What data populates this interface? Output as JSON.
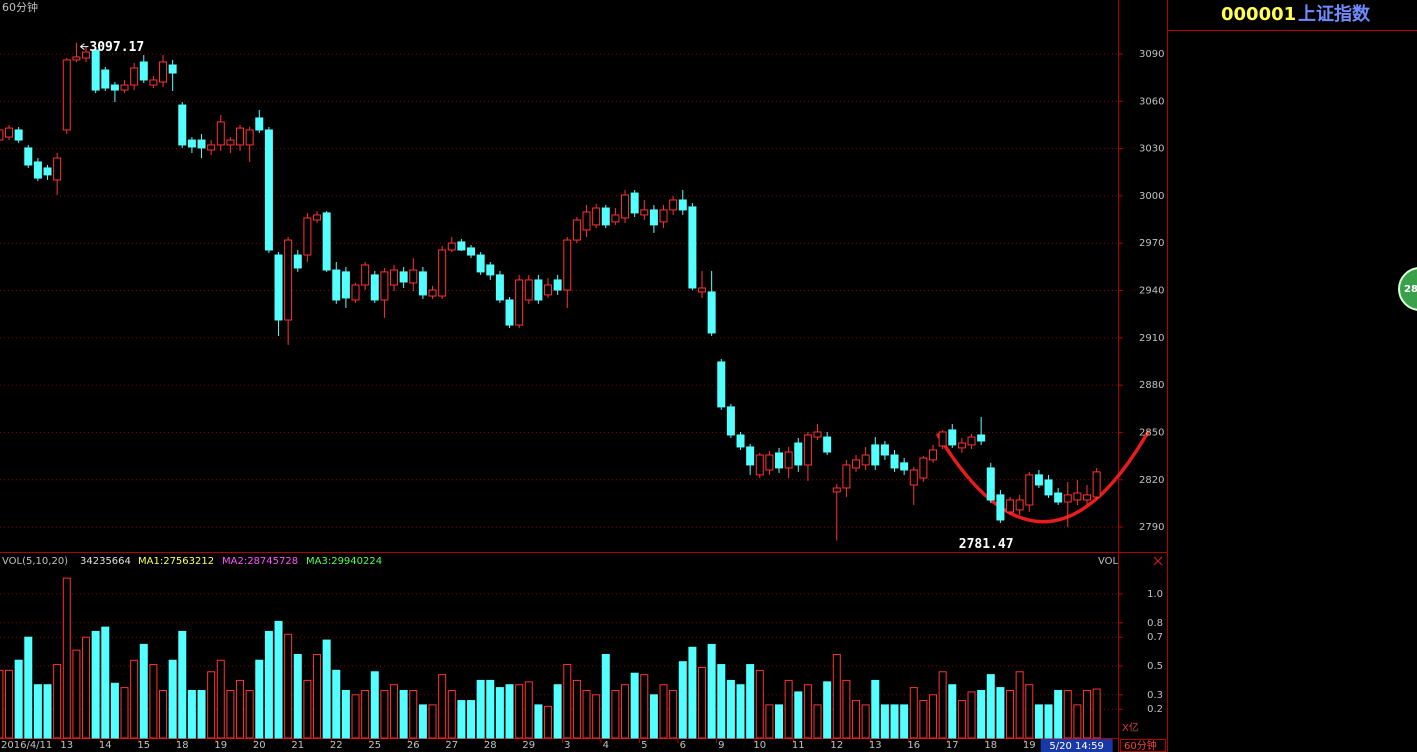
{
  "chart_data": [
    {
      "type": "candlestick",
      "title": "60分钟",
      "categories": [
        "2016/4/11",
        null,
        null,
        null,
        null,
        null,
        null,
        "13",
        null,
        null,
        null,
        "14",
        null,
        null,
        null,
        "15",
        null,
        null,
        null,
        "18",
        null,
        null,
        null,
        "19",
        null,
        null,
        null,
        "20",
        null,
        null,
        null,
        "21",
        null,
        null,
        null,
        "22",
        null,
        null,
        null,
        "25",
        null,
        null,
        null,
        "26",
        null,
        null,
        null,
        "27",
        null,
        null,
        null,
        "28",
        null,
        null,
        null,
        "29",
        null,
        null,
        null,
        "3",
        null,
        null,
        null,
        "4",
        null,
        null,
        null,
        "5",
        null,
        null,
        null,
        "6",
        null,
        null,
        null,
        "9",
        null,
        null,
        null,
        "10",
        null,
        null,
        null,
        "11",
        null,
        null,
        null,
        "12",
        null,
        null,
        null,
        "13",
        null,
        null,
        null,
        "16",
        null,
        null,
        null,
        "17",
        null,
        null,
        null,
        "18",
        null,
        null,
        null,
        "19",
        null,
        null,
        null,
        null,
        null,
        null,
        null
      ],
      "cursor_label": "5/20 14:59",
      "open": [
        3035.4,
        3037.3,
        3041.8,
        3030.4,
        3021.5,
        3017.7,
        3010.1,
        3041.8,
        3086.2,
        3087.4,
        3092.5,
        3079.8,
        3070.3,
        3067.1,
        3070.3,
        3084.9,
        3070.3,
        3072.2,
        3083.0,
        3057.6,
        3035.4,
        3035.4,
        3029.1,
        3032.3,
        3032.3,
        3032.3,
        3032.3,
        3049.4,
        3041.8,
        2962.5,
        2921.3,
        2962.5,
        2962.5,
        2984.7,
        2989.2,
        2953.0,
        2951.8,
        2934.0,
        2943.5,
        2949.9,
        2934.0,
        2943.5,
        2951.8,
        2944.8,
        2951.8,
        2936.5,
        2936.5,
        2965.7,
        2970.8,
        2967.0,
        2962.5,
        2956.2,
        2949.9,
        2934.0,
        2918.1,
        2934.0,
        2946.7,
        2937.2,
        2946.7,
        2940.3,
        2972.0,
        2978.4,
        2981.6,
        2992.3,
        2983.5,
        2986.0,
        3001.8,
        2987.9,
        2991.1,
        2983.5,
        2991.1,
        2997.4,
        2993.0,
        2939.1,
        2939.1,
        2894.7,
        2866.2,
        2848.4,
        2840.8,
        2823.1,
        2826.2,
        2837.0,
        2827.5,
        2843.3,
        2829.4,
        2847.1,
        2847.1,
        2812.3,
        2814.8,
        2827.5,
        2829.4,
        2842.1,
        2842.1,
        2835.7,
        2830.7,
        2816.7,
        2821.1,
        2832.6,
        2841.4,
        2851.6,
        2840.2,
        2842.1,
        2848.4,
        2827.5,
        2810.4,
        2799.6,
        2800.9,
        2804.0,
        2823.1,
        2819.9,
        2811.6,
        2805.9,
        2807.2,
        2807.2,
        2809.1
      ],
      "high": [
        3043.7,
        3045.0,
        3043.7,
        3032.3,
        3024.0,
        3019.6,
        3027.2,
        3087.4,
        3097.17,
        3094.4,
        3094.4,
        3081.7,
        3072.2,
        3073.5,
        3084.3,
        3089.3,
        3076.0,
        3089.3,
        3086.2,
        3059.5,
        3037.3,
        3039.2,
        3035.4,
        3051.3,
        3037.3,
        3045.0,
        3043.7,
        3054.5,
        3043.7,
        2964.4,
        2974.0,
        2965.7,
        2989.2,
        2990.4,
        2990.4,
        2958.1,
        2954.9,
        2944.8,
        2958.1,
        2952.4,
        2954.3,
        2956.2,
        2954.9,
        2960.6,
        2954.9,
        2942.9,
        2968.2,
        2974.0,
        2972.7,
        2968.9,
        2964.4,
        2958.1,
        2952.4,
        2935.9,
        2949.9,
        2949.9,
        2949.9,
        2947.9,
        2949.9,
        2974.0,
        2986.6,
        2994.2,
        2994.9,
        2994.2,
        2992.3,
        3003.7,
        3003.7,
        2997.4,
        2994.2,
        2994.2,
        2999.9,
        3003.7,
        2995.5,
        2952.4,
        2952.4,
        2896.6,
        2868.1,
        2850.3,
        2842.7,
        2837.0,
        2838.3,
        2840.2,
        2840.8,
        2846.5,
        2850.3,
        2855.4,
        2850.3,
        2817.3,
        2832.6,
        2835.7,
        2840.8,
        2847.1,
        2844.6,
        2838.9,
        2833.8,
        2828.1,
        2835.1,
        2842.1,
        2851.6,
        2855.4,
        2846.5,
        2849.0,
        2859.8,
        2830.7,
        2813.5,
        2809.1,
        2810.4,
        2825.0,
        2826.2,
        2823.1,
        2814.8,
        2818.6,
        2819.9,
        2816.7,
        2827.5
      ],
      "low": [
        3033.5,
        3035.4,
        3033.5,
        3017.7,
        3009.4,
        3010.1,
        3000.6,
        3039.2,
        3084.9,
        3084.9,
        3065.2,
        3066.5,
        3059.5,
        3065.2,
        3067.1,
        3071.6,
        3068.4,
        3069.0,
        3066.5,
        3030.4,
        3027.2,
        3024.0,
        3025.9,
        3028.5,
        3027.2,
        3028.5,
        3021.5,
        3039.9,
        2963.8,
        2911.2,
        2905.5,
        2951.8,
        2958.1,
        2982.8,
        2951.8,
        2931.5,
        2928.9,
        2932.1,
        2940.3,
        2932.1,
        2922.6,
        2939.7,
        2941.6,
        2939.7,
        2934.6,
        2934.6,
        2934.6,
        2964.4,
        2965.1,
        2960.6,
        2949.9,
        2946.7,
        2932.1,
        2916.2,
        2916.2,
        2931.5,
        2931.5,
        2935.3,
        2937.2,
        2928.9,
        2970.1,
        2974.0,
        2979.6,
        2979.6,
        2981.6,
        2982.8,
        2986.6,
        2984.7,
        2976.5,
        2979.6,
        2987.9,
        2987.9,
        2940.3,
        2935.3,
        2911.2,
        2864.3,
        2846.5,
        2838.9,
        2823.1,
        2821.1,
        2823.1,
        2824.3,
        2821.1,
        2825.0,
        2819.2,
        2845.2,
        2835.7,
        2781.47,
        2809.1,
        2825.0,
        2826.2,
        2826.2,
        2832.6,
        2825.0,
        2823.1,
        2804.0,
        2818.6,
        2830.7,
        2839.5,
        2840.2,
        2837.0,
        2839.5,
        2842.1,
        2805.3,
        2792.6,
        2797.7,
        2797.7,
        2799.6,
        2814.8,
        2808.5,
        2804.0,
        2790.1,
        2804.0,
        2804.0,
        2807.2
      ],
      "close": [
        3041.8,
        3043.0,
        3035.4,
        3019.6,
        3011.3,
        3013.3,
        3024.0,
        3086.2,
        3088.1,
        3091.2,
        3067.1,
        3068.4,
        3067.1,
        3070.3,
        3081.1,
        3073.5,
        3073.5,
        3084.9,
        3077.9,
        3032.3,
        3031.0,
        3030.4,
        3032.3,
        3046.9,
        3035.4,
        3043.0,
        3041.8,
        3041.8,
        2965.7,
        2921.3,
        2972.0,
        2954.3,
        2986.0,
        2987.9,
        2953.0,
        2934.0,
        2935.3,
        2943.5,
        2956.2,
        2934.0,
        2951.8,
        2953.0,
        2945.4,
        2953.0,
        2937.2,
        2940.3,
        2965.7,
        2970.1,
        2965.7,
        2962.5,
        2951.8,
        2949.9,
        2934.0,
        2918.1,
        2946.7,
        2946.7,
        2934.0,
        2943.5,
        2940.3,
        2972.0,
        2984.7,
        2989.8,
        2992.3,
        2981.6,
        2987.9,
        3000.6,
        2989.2,
        2991.1,
        2981.6,
        2991.1,
        2997.4,
        2991.1,
        2941.6,
        2941.6,
        2913.1,
        2866.2,
        2848.4,
        2840.8,
        2829.4,
        2835.7,
        2835.7,
        2827.5,
        2837.6,
        2829.4,
        2848.4,
        2850.3,
        2837.6,
        2814.8,
        2829.4,
        2832.6,
        2835.7,
        2829.4,
        2835.7,
        2827.5,
        2826.2,
        2826.2,
        2833.8,
        2838.9,
        2850.3,
        2842.1,
        2843.3,
        2847.1,
        2844.6,
        2807.2,
        2794.5,
        2807.2,
        2807.2,
        2823.1,
        2816.7,
        2810.4,
        2805.9,
        2810.4,
        2811.6,
        2810.4,
        2825.0
      ],
      "up_color": "#ff3232",
      "down_color": "#54ffff",
      "ylim": [
        2774.2,
        3124.2
      ],
      "yticks": [
        2790,
        2820,
        2850,
        2880,
        2910,
        2940,
        2970,
        3000,
        3030,
        3060,
        3090
      ],
      "grid": true,
      "high_label_index": 8,
      "low_label_index": 87
    },
    {
      "type": "bar",
      "title": "VOL(5,10,20)",
      "axis_label": "VOL",
      "unit_label": "X亿",
      "current": 34235664,
      "legend": [
        {
          "text": "MA1:27563212",
          "color": "#ffff54"
        },
        {
          "text": "MA2:28745728",
          "color": "#ff54ff"
        },
        {
          "text": "MA3:29940224",
          "color": "#54ff54"
        }
      ],
      "values": [
        0.47,
        0.47,
        0.54,
        0.7,
        0.37,
        0.37,
        0.51,
        1.11,
        0.61,
        0.7,
        0.74,
        0.77,
        0.38,
        0.35,
        0.54,
        0.65,
        0.51,
        0.33,
        0.54,
        0.74,
        0.33,
        0.33,
        0.46,
        0.54,
        0.33,
        0.4,
        0.33,
        0.54,
        0.74,
        0.81,
        0.72,
        0.58,
        0.4,
        0.58,
        0.68,
        0.47,
        0.33,
        0.3,
        0.33,
        0.46,
        0.33,
        0.37,
        0.33,
        0.33,
        0.23,
        0.23,
        0.44,
        0.33,
        0.26,
        0.26,
        0.4,
        0.4,
        0.35,
        0.37,
        0.37,
        0.39,
        0.23,
        0.22,
        0.37,
        0.51,
        0.4,
        0.33,
        0.3,
        0.58,
        0.33,
        0.37,
        0.45,
        0.44,
        0.3,
        0.37,
        0.33,
        0.53,
        0.63,
        0.49,
        0.65,
        0.51,
        0.4,
        0.37,
        0.51,
        0.47,
        0.23,
        0.23,
        0.4,
        0.32,
        0.37,
        0.23,
        0.39,
        0.58,
        0.4,
        0.26,
        0.23,
        0.4,
        0.23,
        0.23,
        0.23,
        0.35,
        0.26,
        0.3,
        0.46,
        0.37,
        0.26,
        0.32,
        0.33,
        0.44,
        0.35,
        0.33,
        0.46,
        0.37,
        0.23,
        0.23,
        0.33,
        0.33,
        0.23,
        0.33,
        0.34
      ],
      "ylim": [
        0,
        1.25
      ],
      "yticks": [
        0.2,
        0.3,
        0.5,
        0.7,
        0.8,
        {
          "value": 1,
          "label": "1.0"
        }
      ],
      "grid": true,
      "period_tab": "60分钟"
    }
  ],
  "quote": {
    "code": "000001",
    "name": "上证指数",
    "badge": "28"
  }
}
